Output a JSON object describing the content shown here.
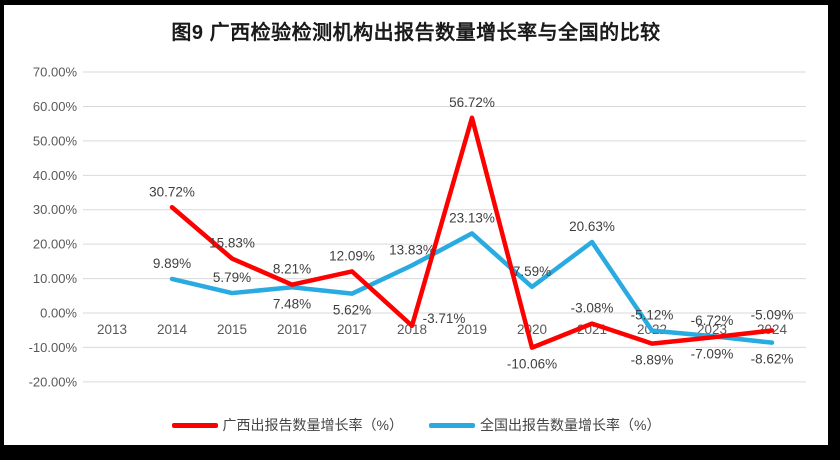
{
  "frame": {
    "border_color": "#000000",
    "canvas_background": "#ffffff"
  },
  "chart_data": {
    "type": "line",
    "title": "图9 广西检验检测机构出报告数量增长率与全国的比较",
    "categories": [
      "2013",
      "2014",
      "2015",
      "2016",
      "2017",
      "2018",
      "2019",
      "2020",
      "2021",
      "2022",
      "2023",
      "2024"
    ],
    "series": [
      {
        "name": "广西出报告数量增长率（%）",
        "color": "#FF0000",
        "values": [
          null,
          30.72,
          15.83,
          8.21,
          12.09,
          -3.71,
          56.72,
          -10.06,
          -3.08,
          -8.89,
          -7.09,
          -5.09
        ],
        "point_labels": [
          null,
          "30.72%",
          "15.83%",
          "8.21%",
          "12.09%",
          "-3.71%",
          "56.72%",
          "-10.06%",
          "-3.08%",
          "-8.89%",
          "-7.09%",
          "-5.09%"
        ],
        "label_positions": [
          null,
          "above",
          "above",
          "above",
          "above",
          "above-right",
          "above",
          "below",
          "above",
          "below",
          "below",
          "above"
        ]
      },
      {
        "name": "全国出报告数量增长率（%）",
        "color": "#29ABE2",
        "values": [
          null,
          9.89,
          5.79,
          7.48,
          5.62,
          13.83,
          23.13,
          7.59,
          20.63,
          -5.12,
          -6.72,
          -8.62
        ],
        "point_labels": [
          null,
          "9.89%",
          "5.79%",
          "7.48%",
          "5.62%",
          "13.83%",
          "23.13%",
          "7.59%",
          "20.63%",
          "-5.12%",
          "-6.72%",
          "-8.62%"
        ],
        "label_positions": [
          null,
          "above",
          "above",
          "below",
          "below",
          "above",
          "above",
          "above",
          "above",
          "above",
          "above",
          "below"
        ]
      }
    ],
    "y_axis": {
      "min": -20,
      "max": 70,
      "step": 10,
      "tick_labels": [
        "70.00%",
        "60.00%",
        "50.00%",
        "40.00%",
        "30.00%",
        "20.00%",
        "10.00%",
        "0.00%",
        "-10.00%",
        "-20.00%"
      ]
    },
    "grid": true,
    "gridline_color": "#D9D9D9",
    "legend_position": "bottom"
  }
}
